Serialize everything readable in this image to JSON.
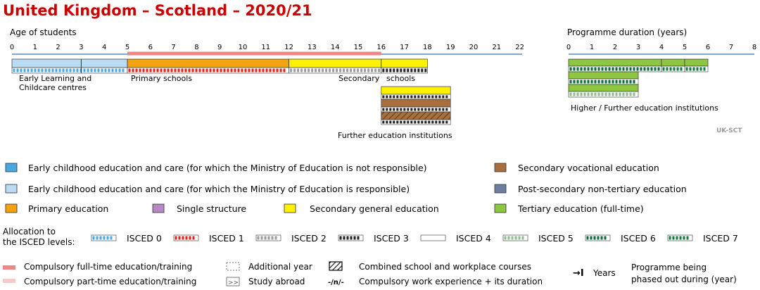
{
  "title": "United Kingdom – Scotland – 2020/21",
  "colors": {
    "title": "#cc0000",
    "ecec_not_ministry": "#4aa8e0",
    "ecec_ministry": "#b9dcf4",
    "primary": "#f5a20f",
    "single": "#b688c4",
    "secondary_general": "#fff200",
    "secondary_vocational": "#a86f3e",
    "post_secondary": "#6f7ea0",
    "tertiary": "#8dc63f",
    "compulsory_full": "#f08585",
    "compulsory_part": "#f9c9c9",
    "axis": "#7fa7d9"
  },
  "age_axis": {
    "label": "Age of students",
    "ticks": [
      "0",
      "1",
      "2",
      "3",
      "4",
      "5",
      "6",
      "7",
      "8",
      "9",
      "10",
      "11",
      "12",
      "13",
      "14",
      "15",
      "16",
      "17",
      "18",
      "19",
      "20",
      "21",
      "22"
    ]
  },
  "duration_axis": {
    "label": "Programme duration (years)",
    "ticks": [
      "0",
      "1",
      "2",
      "3",
      "4",
      "5",
      "6",
      "7",
      "8"
    ]
  },
  "compulsory_full_time": {
    "from_age": 5,
    "to_age": 16
  },
  "age_bars": [
    {
      "name": "early-learning",
      "from": 0,
      "to": 5,
      "color": "ecec_ministry",
      "isced": "0",
      "dividers": [
        3
      ]
    },
    {
      "name": "primary",
      "from": 5,
      "to": 12,
      "color": "primary",
      "isced": "1",
      "dividers": []
    },
    {
      "name": "secondary-lower",
      "from": 12,
      "to": 16,
      "color": "secondary_general",
      "isced": "2",
      "dividers": [
        16
      ]
    },
    {
      "name": "secondary-upper",
      "from": 16,
      "to": 18,
      "color": "secondary_general",
      "isced": "3",
      "dividers": []
    }
  ],
  "further_education_bars": [
    {
      "name": "fe-general-isced3",
      "from": 16,
      "to": 19,
      "color": "secondary_general",
      "isced": "3",
      "hatch": false
    },
    {
      "name": "fe-vocational-isced3",
      "from": 16,
      "to": 19,
      "color": "secondary_vocational",
      "isced": "3",
      "hatch": false
    },
    {
      "name": "fe-vocational-isced3-combined",
      "from": 16,
      "to": 19,
      "color": "secondary_vocational",
      "isced": "3",
      "hatch": true
    }
  ],
  "tertiary_bars": [
    {
      "name": "tertiary-row1",
      "segments": [
        {
          "from": 0,
          "to": 4,
          "isced": "6"
        },
        {
          "from": 4,
          "to": 5,
          "isced": "7"
        },
        {
          "from": 5,
          "to": 6,
          "isced": "7"
        }
      ]
    },
    {
      "name": "tertiary-row2",
      "segments": [
        {
          "from": 0,
          "to": 3,
          "isced": "6"
        }
      ]
    },
    {
      "name": "tertiary-row3",
      "segments": [
        {
          "from": 0,
          "to": 3,
          "isced": "5"
        }
      ]
    }
  ],
  "labels": {
    "early_learning_1": "Early Learning and",
    "early_learning_2": "Childcare centres",
    "primary_schools": "Primary schools",
    "secondary": "Secondary",
    "schools": "schools",
    "further_education": "Further education institutions",
    "higher_further": "Higher / Further education institutions",
    "country_code": "UK-SCT"
  },
  "legend": {
    "ecec_not_ministry": "Early childhood education and care (for which the Ministry of Education is not responsible)",
    "ecec_ministry": "Early childhood education and care (for which the Ministry of Education is responsible)",
    "primary": "Primary education",
    "single": "Single structure",
    "secondary_general": "Secondary general education",
    "secondary_vocational": "Secondary vocational education",
    "post_secondary": "Post-secondary non-tertiary education",
    "tertiary": "Tertiary education (full-time)"
  },
  "isced_allocation": {
    "label_1": "Allocation to",
    "label_2": "the ISCED levels:",
    "levels": [
      {
        "label": "ISCED 0",
        "color": "#4aa8e0"
      },
      {
        "label": "ISCED 1",
        "color": "#e2231a"
      },
      {
        "label": "ISCED 2",
        "color": "#9b9b9b"
      },
      {
        "label": "ISCED 3",
        "color": "#222222"
      },
      {
        "label": "ISCED 4",
        "color": "#ffffff"
      },
      {
        "label": "ISCED 5",
        "color": "#8fbc8f"
      },
      {
        "label": "ISCED 6",
        "color": "#0b6b3a"
      },
      {
        "label": "ISCED 7",
        "color": "#137c3c"
      }
    ]
  },
  "bottom_legend": {
    "compulsory_full": "Compulsory full-time education/training",
    "compulsory_part": "Compulsory part-time education/training",
    "additional_year": "Additional year",
    "study_abroad": "Study abroad",
    "study_abroad_glyph": ">>",
    "combined": "Combined school and workplace courses",
    "work_experience_glyph": "-/n/-",
    "work_experience": "Compulsory work experience + its duration",
    "years_glyph": "→I",
    "years": "Years",
    "phased_out_1": "Programme being",
    "phased_out_2": "phased out during (year)"
  }
}
